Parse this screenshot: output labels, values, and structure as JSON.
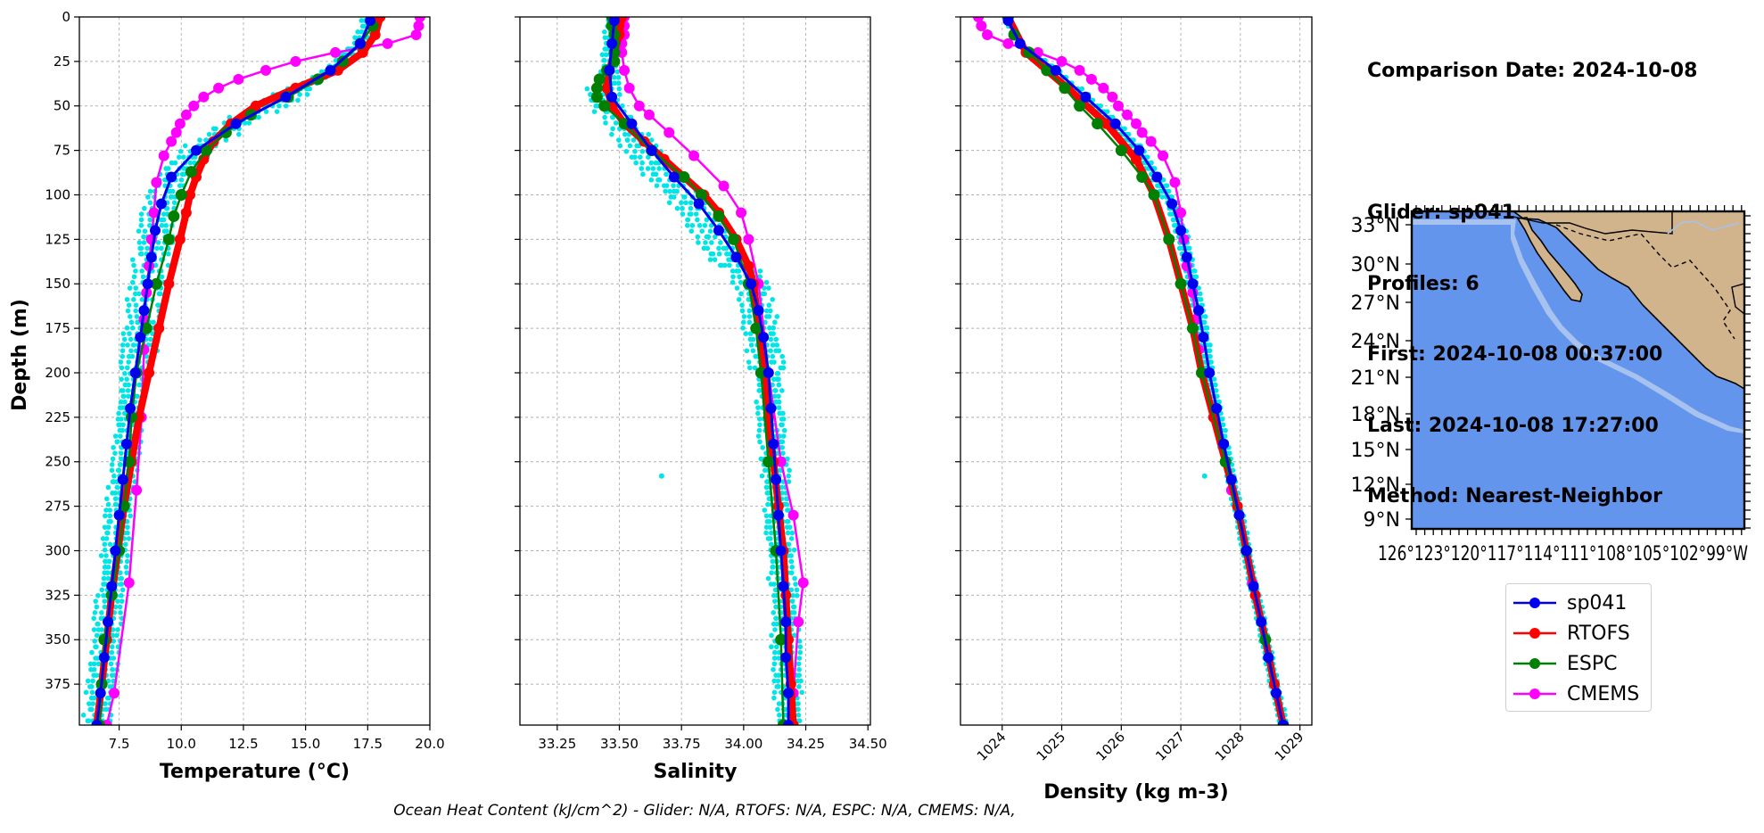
{
  "colors": {
    "sp041": "#0000ee",
    "RTOFS": "#ff0000",
    "ESPC": "#007f00",
    "CMEMS": "#ff00ff",
    "glider_points": "#00e5e5",
    "ocean": "#6495ed",
    "land": "#d2b48c",
    "shelf": "#a7c2ef"
  },
  "info": {
    "date_line": "Comparison Date: 2024-10-08",
    "glider_line": "Glider: sp041",
    "profiles_line": "Profiles: 6",
    "first_line": "First: 2024-10-08 00:37:00",
    "last_line": "Last: 2024-10-08 17:27:00",
    "method_line": "Method: Nearest-Neighbor"
  },
  "legend": [
    {
      "key": "sp041",
      "label": "sp041"
    },
    {
      "key": "RTOFS",
      "label": "RTOFS"
    },
    {
      "key": "ESPC",
      "label": "ESPC"
    },
    {
      "key": "CMEMS",
      "label": "CMEMS"
    }
  ],
  "footer": "Ocean Heat Content (kJ/cm^2) - Glider: N/A,  RTOFS: N/A,  ESPC: N/A,  CMEMS: N/A,",
  "chart_data": [
    {
      "type": "line",
      "xlabel": "Temperature (°C)",
      "ylabel": "Depth (m)",
      "xlim": [
        5.9,
        20.0
      ],
      "ylim": [
        398,
        0
      ],
      "xticks": [
        "7.5",
        "10.0",
        "12.5",
        "15.0",
        "17.5",
        "20.0"
      ],
      "xtick_values": [
        7.5,
        10.0,
        12.5,
        15.0,
        17.5,
        20.0
      ],
      "yticks": [
        "0",
        "25",
        "50",
        "75",
        "100",
        "125",
        "150",
        "175",
        "200",
        "225",
        "250",
        "275",
        "300",
        "325",
        "350",
        "375"
      ],
      "grid": true,
      "series": [
        {
          "name": "sp041",
          "depth": [
            2,
            15,
            30,
            45,
            60,
            75,
            90,
            105,
            120,
            135,
            150,
            165,
            180,
            200,
            220,
            240,
            260,
            280,
            300,
            320,
            340,
            360,
            380,
            398
          ],
          "values": [
            17.6,
            17.2,
            16.0,
            14.2,
            12.2,
            10.6,
            9.6,
            9.2,
            8.95,
            8.8,
            8.65,
            8.5,
            8.35,
            8.15,
            7.95,
            7.8,
            7.65,
            7.5,
            7.35,
            7.2,
            7.05,
            6.9,
            6.75,
            6.6
          ]
        },
        {
          "name": "RTOFS",
          "depth": [
            0,
            10,
            20,
            30,
            40,
            50,
            60,
            70,
            80,
            90,
            100,
            110,
            125,
            150,
            175,
            200,
            225,
            250,
            275,
            300,
            325,
            350,
            375,
            398
          ],
          "values": [
            18.0,
            17.8,
            17.3,
            16.3,
            14.6,
            13.0,
            12.0,
            11.3,
            10.9,
            10.6,
            10.35,
            10.2,
            9.95,
            9.5,
            9.1,
            8.7,
            8.3,
            8.0,
            7.7,
            7.45,
            7.2,
            7.0,
            6.8,
            6.6
          ]
        },
        {
          "name": "ESPC",
          "depth": [
            5,
            15,
            25,
            35,
            45,
            55,
            65,
            75,
            87,
            100,
            112,
            125,
            150,
            175,
            200,
            225,
            250,
            275,
            300,
            325,
            350,
            375,
            398
          ],
          "values": [
            17.7,
            17.2,
            16.5,
            15.5,
            14.3,
            12.8,
            11.8,
            11.0,
            10.4,
            10.0,
            9.7,
            9.5,
            9.0,
            8.6,
            8.2,
            8.0,
            7.9,
            7.7,
            7.5,
            7.2,
            6.9,
            6.8,
            6.7
          ]
        },
        {
          "name": "CMEMS",
          "depth": [
            0,
            5,
            10,
            15,
            20,
            25,
            30,
            35,
            40,
            45,
            50,
            55,
            60,
            65,
            70,
            78,
            93,
            110,
            125,
            140,
            155,
            170,
            187,
            225,
            266,
            318,
            380,
            398
          ],
          "values": [
            19.6,
            19.55,
            19.45,
            18.3,
            16.2,
            14.6,
            13.4,
            12.3,
            11.5,
            10.9,
            10.5,
            10.2,
            9.95,
            9.8,
            9.6,
            9.3,
            9.0,
            8.9,
            8.8,
            8.7,
            8.6,
            8.5,
            8.5,
            8.4,
            8.2,
            7.9,
            7.3,
            7.0
          ]
        }
      ]
    },
    {
      "type": "line",
      "xlabel": "Salinity",
      "ylabel": "",
      "xlim": [
        33.1,
        34.51
      ],
      "ylim": [
        398,
        0
      ],
      "xticks": [
        "33.25",
        "33.50",
        "33.75",
        "34.00",
        "34.25",
        "34.50"
      ],
      "xtick_values": [
        33.25,
        33.5,
        33.75,
        34.0,
        34.25,
        34.5
      ],
      "grid": true,
      "series": [
        {
          "name": "sp041",
          "depth": [
            2,
            15,
            30,
            45,
            60,
            75,
            90,
            105,
            120,
            135,
            150,
            165,
            180,
            200,
            220,
            240,
            260,
            280,
            300,
            320,
            340,
            360,
            380,
            398
          ],
          "values": [
            33.48,
            33.47,
            33.46,
            33.47,
            33.55,
            33.63,
            33.72,
            33.82,
            33.9,
            33.97,
            34.03,
            34.06,
            34.08,
            34.1,
            34.11,
            34.12,
            34.13,
            34.14,
            34.15,
            34.16,
            34.17,
            34.17,
            34.18,
            34.18
          ]
        },
        {
          "name": "RTOFS",
          "depth": [
            0,
            10,
            20,
            30,
            40,
            50,
            60,
            70,
            80,
            90,
            100,
            110,
            125,
            140,
            150,
            175,
            200,
            225,
            250,
            275,
            300,
            325,
            350,
            375,
            398
          ],
          "values": [
            33.51,
            33.5,
            33.48,
            33.46,
            33.45,
            33.47,
            33.52,
            33.6,
            33.68,
            33.76,
            33.84,
            33.9,
            33.97,
            34.02,
            34.04,
            34.06,
            34.08,
            34.1,
            34.12,
            34.14,
            34.16,
            34.17,
            34.18,
            34.19,
            34.2
          ]
        },
        {
          "name": "ESPC",
          "depth": [
            0,
            5,
            10,
            15,
            20,
            25,
            30,
            35,
            40,
            45,
            50,
            60,
            75,
            90,
            100,
            112,
            125,
            150,
            175,
            200,
            250,
            300,
            350,
            398
          ],
          "values": [
            33.47,
            33.47,
            33.48,
            33.48,
            33.48,
            33.48,
            33.45,
            33.42,
            33.41,
            33.41,
            33.44,
            33.52,
            33.63,
            33.76,
            33.83,
            33.9,
            33.96,
            34.02,
            34.05,
            34.07,
            34.1,
            34.13,
            34.15,
            34.16
          ]
        },
        {
          "name": "CMEMS",
          "depth": [
            0,
            5,
            10,
            15,
            20,
            30,
            40,
            50,
            55,
            65,
            78,
            95,
            110,
            125,
            150,
            200,
            250,
            280,
            318,
            340,
            380,
            398
          ],
          "values": [
            33.52,
            33.52,
            33.52,
            33.51,
            33.51,
            33.52,
            33.54,
            33.58,
            33.62,
            33.7,
            33.8,
            33.92,
            33.99,
            34.02,
            34.06,
            34.1,
            34.15,
            34.2,
            34.24,
            34.22,
            34.2,
            34.2
          ]
        }
      ]
    },
    {
      "type": "line",
      "xlabel": "Density (kg m-3)",
      "ylabel": "",
      "xlim": [
        1023.3,
        1029.2
      ],
      "ylim": [
        398,
        0
      ],
      "xticks": [
        "1024",
        "1025",
        "1026",
        "1027",
        "1028",
        "1029"
      ],
      "xtick_values": [
        1024,
        1025,
        1026,
        1027,
        1028,
        1029
      ],
      "grid": true,
      "series": [
        {
          "name": "sp041",
          "depth": [
            2,
            15,
            30,
            45,
            60,
            75,
            90,
            105,
            120,
            135,
            150,
            165,
            180,
            200,
            220,
            240,
            260,
            280,
            300,
            320,
            340,
            360,
            380,
            398
          ],
          "values": [
            1024.1,
            1024.3,
            1024.9,
            1025.4,
            1025.9,
            1026.3,
            1026.6,
            1026.85,
            1027.0,
            1027.1,
            1027.2,
            1027.3,
            1027.38,
            1027.48,
            1027.6,
            1027.72,
            1027.85,
            1027.98,
            1028.1,
            1028.22,
            1028.35,
            1028.47,
            1028.6,
            1028.72
          ]
        },
        {
          "name": "RTOFS",
          "depth": [
            0,
            20,
            40,
            60,
            80,
            100,
            125,
            150,
            175,
            200,
            225,
            250,
            275,
            300,
            325,
            350,
            375,
            398
          ],
          "values": [
            1024.1,
            1024.4,
            1025.1,
            1025.75,
            1026.25,
            1026.55,
            1026.8,
            1027.0,
            1027.2,
            1027.35,
            1027.55,
            1027.75,
            1027.95,
            1028.1,
            1028.25,
            1028.42,
            1028.57,
            1028.72
          ]
        },
        {
          "name": "ESPC",
          "depth": [
            0,
            10,
            20,
            30,
            40,
            50,
            60,
            75,
            90,
            100,
            125,
            150,
            175,
            200,
            250,
            300,
            350,
            398
          ],
          "values": [
            1024.1,
            1024.2,
            1024.45,
            1024.75,
            1025.05,
            1025.3,
            1025.6,
            1026.0,
            1026.35,
            1026.55,
            1026.8,
            1027.0,
            1027.2,
            1027.35,
            1027.75,
            1028.1,
            1028.42,
            1028.72
          ]
        },
        {
          "name": "CMEMS",
          "depth": [
            0,
            5,
            10,
            15,
            20,
            25,
            30,
            35,
            40,
            45,
            50,
            55,
            60,
            65,
            70,
            78,
            93,
            110,
            125,
            140,
            155,
            170,
            187,
            225,
            266,
            318,
            380,
            398
          ],
          "values": [
            1023.6,
            1023.65,
            1023.75,
            1024.1,
            1024.6,
            1025.0,
            1025.3,
            1025.5,
            1025.7,
            1025.85,
            1025.95,
            1026.1,
            1026.25,
            1026.35,
            1026.5,
            1026.7,
            1026.9,
            1027.0,
            1027.05,
            1027.1,
            1027.2,
            1027.25,
            1027.3,
            1027.55,
            1027.85,
            1028.2,
            1028.6,
            1028.72
          ]
        }
      ]
    }
  ],
  "map": {
    "lat_labels": [
      "33°N",
      "30°N",
      "27°N",
      "24°N",
      "21°N",
      "18°N",
      "15°N",
      "12°N",
      "9°N"
    ],
    "lon_label_text": "126°123°120°117°114°111°108°105°102°99°W"
  }
}
